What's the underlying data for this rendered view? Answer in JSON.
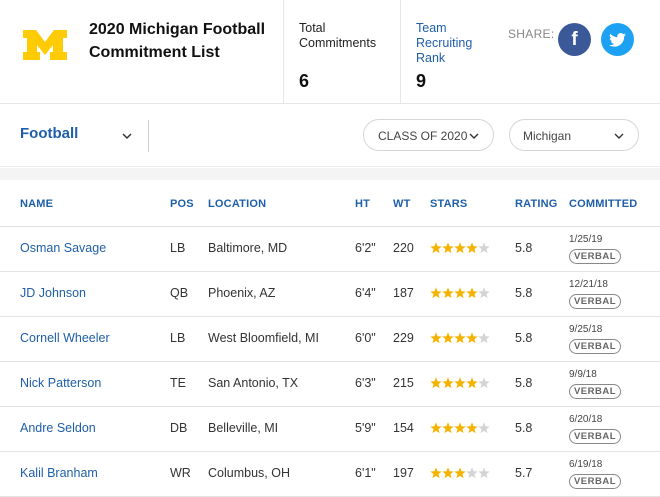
{
  "header": {
    "title": "2020 Michigan Football Commitment List",
    "total_label": "Total Commitments",
    "total_value": "6",
    "rank_label": "Team Recruiting Rank",
    "rank_value": "9",
    "share_label": "SHARE:",
    "brand_color": "#ffcb05",
    "facebook_icon": "f",
    "twitter_icon": "twitter-bird"
  },
  "filters": {
    "sport": "Football",
    "class": "CLASS OF 2020",
    "team": "Michigan"
  },
  "table": {
    "columns": [
      "NAME",
      "POS",
      "LOCATION",
      "HT",
      "WT",
      "STARS",
      "RATING",
      "COMMITTED"
    ],
    "rows": [
      {
        "name": "Osman Savage",
        "pos": "LB",
        "location": "Baltimore, MD",
        "ht": "6'2\"",
        "wt": "220",
        "stars": 4,
        "rating": "5.8",
        "date": "1/25/19",
        "status": "VERBAL"
      },
      {
        "name": "JD Johnson",
        "pos": "QB",
        "location": "Phoenix, AZ",
        "ht": "6'4\"",
        "wt": "187",
        "stars": 4,
        "rating": "5.8",
        "date": "12/21/18",
        "status": "VERBAL"
      },
      {
        "name": "Cornell Wheeler",
        "pos": "LB",
        "location": "West Bloomfield, MI",
        "ht": "6'0\"",
        "wt": "229",
        "stars": 4,
        "rating": "5.8",
        "date": "9/25/18",
        "status": "VERBAL"
      },
      {
        "name": "Nick Patterson",
        "pos": "TE",
        "location": "San Antonio, TX",
        "ht": "6'3\"",
        "wt": "215",
        "stars": 4,
        "rating": "5.8",
        "date": "9/9/18",
        "status": "VERBAL"
      },
      {
        "name": "Andre Seldon",
        "pos": "DB",
        "location": "Belleville, MI",
        "ht": "5'9\"",
        "wt": "154",
        "stars": 4,
        "rating": "5.8",
        "date": "6/20/18",
        "status": "VERBAL"
      },
      {
        "name": "Kalil Branham",
        "pos": "WR",
        "location": "Columbus, OH",
        "ht": "6'1\"",
        "wt": "197",
        "stars": 3,
        "rating": "5.7",
        "date": "6/19/18",
        "status": "VERBAL"
      }
    ]
  },
  "colors": {
    "link": "#1f5fa8",
    "star_on": "#f5b301",
    "star_off": "#d4d4d4"
  }
}
